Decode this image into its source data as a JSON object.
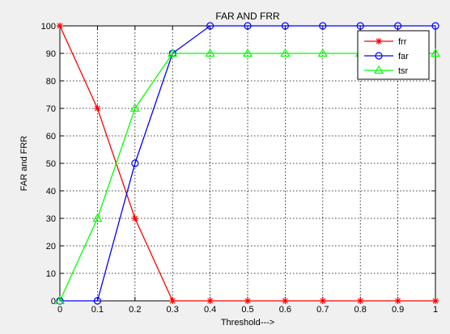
{
  "chart_data": {
    "type": "line",
    "title": "FAR AND FRR",
    "xlabel": "Threshold--->",
    "ylabel": "FAR and FRR",
    "x": [
      0,
      0.1,
      0.2,
      0.3,
      0.4,
      0.5,
      0.6,
      0.7,
      0.8,
      0.9,
      1
    ],
    "x_ticks": [
      "0",
      "0.1",
      "0.2",
      "0.3",
      "0.4",
      "0.5",
      "0.6",
      "0.7",
      "0.8",
      "0.9",
      "1"
    ],
    "y_ticks": [
      "0",
      "10",
      "20",
      "30",
      "40",
      "50",
      "60",
      "70",
      "80",
      "90",
      "100"
    ],
    "xlim": [
      0,
      1
    ],
    "ylim": [
      0,
      100
    ],
    "grid": true,
    "legend_position": "top-right",
    "series": [
      {
        "name": "frr",
        "color": "#ff0000",
        "marker": "star",
        "values": [
          100,
          70,
          30,
          0,
          0,
          0,
          0,
          0,
          0,
          0,
          0
        ]
      },
      {
        "name": "far",
        "color": "#0000ff",
        "marker": "circle",
        "values": [
          0,
          0,
          50,
          90,
          100,
          100,
          100,
          100,
          100,
          100,
          100
        ]
      },
      {
        "name": "tsr",
        "color": "#00ff00",
        "marker": "triangle",
        "values": [
          0,
          30,
          70,
          90,
          90,
          90,
          90,
          90,
          90,
          90,
          90
        ]
      }
    ]
  }
}
